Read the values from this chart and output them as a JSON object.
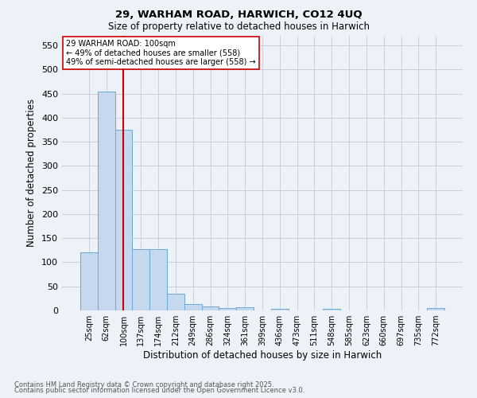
{
  "title1": "29, WARHAM ROAD, HARWICH, CO12 4UQ",
  "title2": "Size of property relative to detached houses in Harwich",
  "xlabel": "Distribution of detached houses by size in Harwich",
  "ylabel": "Number of detached properties",
  "footer1": "Contains HM Land Registry data © Crown copyright and database right 2025.",
  "footer2": "Contains public sector information licensed under the Open Government Licence v3.0.",
  "annotation_title": "29 WARHAM ROAD: 100sqm",
  "annotation_line1": "← 49% of detached houses are smaller (558)",
  "annotation_line2": "49% of semi-detached houses are larger (558) →",
  "vline_color": "#cc0000",
  "bar_color": "#c5d8ee",
  "bar_edge_color": "#6aaad4",
  "categories": [
    "25sqm",
    "62sqm",
    "100sqm",
    "137sqm",
    "174sqm",
    "212sqm",
    "249sqm",
    "286sqm",
    "324sqm",
    "361sqm",
    "399sqm",
    "436sqm",
    "473sqm",
    "511sqm",
    "548sqm",
    "585sqm",
    "623sqm",
    "660sqm",
    "697sqm",
    "735sqm",
    "772sqm"
  ],
  "values": [
    120,
    455,
    375,
    128,
    128,
    35,
    14,
    9,
    5,
    6,
    0,
    3,
    0,
    0,
    3,
    0,
    0,
    0,
    0,
    0,
    5
  ],
  "ylim": [
    0,
    570
  ],
  "yticks": [
    0,
    50,
    100,
    150,
    200,
    250,
    300,
    350,
    400,
    450,
    500,
    550
  ],
  "background_color": "#edf2f9",
  "annotation_box_color": "#ffffff",
  "annotation_box_edgecolor": "#cc0000",
  "grid_color": "#c8d0de"
}
